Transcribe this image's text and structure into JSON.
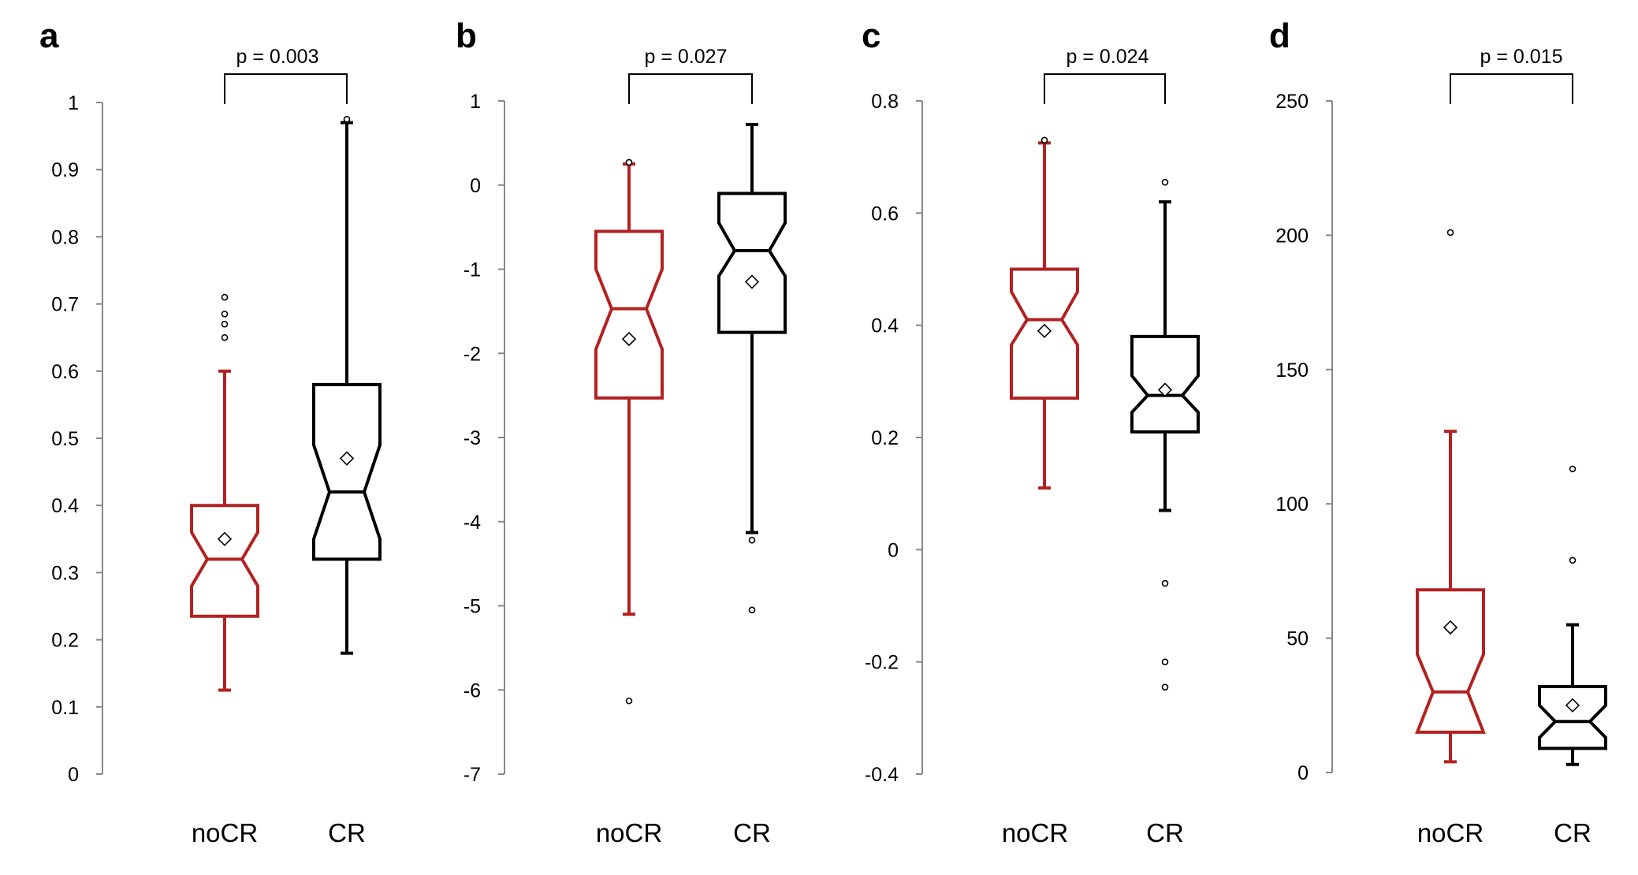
{
  "colors": {
    "noCR": "#b22222",
    "CR": "#000000",
    "axis": "#888888"
  },
  "chart_data": [
    {
      "type": "boxplot",
      "panel": "a",
      "p_value": "p = 0.003",
      "categories": [
        "noCR",
        "CR"
      ],
      "ylim": [
        0,
        1
      ],
      "yticks": [
        "0",
        "0.1",
        "0.2",
        "0.3",
        "0.4",
        "0.5",
        "0.6",
        "0.7",
        "0.8",
        "0.9",
        "1"
      ],
      "ytick_values": [
        0,
        0.1,
        0.2,
        0.3,
        0.4,
        0.5,
        0.6,
        0.7,
        0.8,
        0.9,
        1
      ],
      "boxes": [
        {
          "name": "noCR",
          "whisker_low": 0.125,
          "q1": 0.235,
          "median": 0.32,
          "q3": 0.4,
          "whisker_high": 0.6,
          "mean": 0.35,
          "notch_low": 0.28,
          "notch_high": 0.36,
          "outliers": [
            0.65,
            0.67,
            0.685,
            0.71
          ]
        },
        {
          "name": "CR",
          "whisker_low": 0.18,
          "q1": 0.32,
          "median": 0.42,
          "q3": 0.58,
          "whisker_high": 0.97,
          "mean": 0.47,
          "notch_low": 0.35,
          "notch_high": 0.49,
          "outliers": [
            0.975
          ]
        }
      ]
    },
    {
      "type": "boxplot",
      "panel": "b",
      "p_value": "p = 0.027",
      "categories": [
        "noCR",
        "CR"
      ],
      "ylim": [
        -7,
        1
      ],
      "yticks": [
        "-7",
        "-6",
        "-5",
        "-4",
        "-3",
        "-2",
        "-1",
        "0",
        "1"
      ],
      "ytick_values": [
        -7,
        -6,
        -5,
        -4,
        -3,
        -2,
        -1,
        0,
        1
      ],
      "boxes": [
        {
          "name": "noCR",
          "whisker_low": -5.1,
          "q1": -2.53,
          "median": -1.47,
          "q3": -0.55,
          "whisker_high": 0.25,
          "mean": -1.83,
          "notch_low": -1.95,
          "notch_high": -1.0,
          "outliers": [
            -6.13,
            0.27
          ]
        },
        {
          "name": "CR",
          "whisker_low": -4.13,
          "q1": -1.75,
          "median": -0.78,
          "q3": -0.1,
          "whisker_high": 0.72,
          "mean": -1.15,
          "notch_low": -1.08,
          "notch_high": -0.45,
          "outliers": [
            -4.22,
            -5.05
          ]
        }
      ]
    },
    {
      "type": "boxplot",
      "panel": "c",
      "p_value": "p = 0.024",
      "categories": [
        "noCR",
        "CR"
      ],
      "ylim": [
        -0.4,
        0.8
      ],
      "yticks": [
        "-0.4",
        "-0.2",
        "0",
        "0.2",
        "0.4",
        "0.6",
        "0.8"
      ],
      "ytick_values": [
        -0.4,
        -0.2,
        0,
        0.2,
        0.4,
        0.6,
        0.8
      ],
      "boxes": [
        {
          "name": "noCR",
          "whisker_low": 0.11,
          "q1": 0.27,
          "median": 0.41,
          "q3": 0.5,
          "whisker_high": 0.725,
          "mean": 0.39,
          "notch_low": 0.365,
          "notch_high": 0.46,
          "outliers": [
            0.73
          ]
        },
        {
          "name": "CR",
          "whisker_low": 0.07,
          "q1": 0.21,
          "median": 0.275,
          "q3": 0.38,
          "whisker_high": 0.62,
          "mean": 0.285,
          "notch_low": 0.245,
          "notch_high": 0.31,
          "outliers": [
            0.655,
            -0.06,
            -0.2,
            -0.245
          ]
        }
      ]
    },
    {
      "type": "boxplot",
      "panel": "d",
      "p_value": "p = 0.015",
      "categories": [
        "noCR",
        "CR"
      ],
      "ylim": [
        0,
        250
      ],
      "yticks": [
        "0",
        "50",
        "100",
        "150",
        "200",
        "250"
      ],
      "ytick_values": [
        0,
        50,
        100,
        150,
        200,
        250
      ],
      "boxes": [
        {
          "name": "noCR",
          "whisker_low": 4,
          "q1": 15,
          "median": 30,
          "q3": 68,
          "whisker_high": 127,
          "mean": 54,
          "notch_low": 15,
          "notch_high": 44,
          "outliers": [
            201
          ]
        },
        {
          "name": "CR",
          "whisker_low": 3,
          "q1": 9,
          "median": 19,
          "q3": 32,
          "whisker_high": 55,
          "mean": 25,
          "notch_low": 13,
          "notch_high": 25,
          "outliers": [
            113,
            79
          ]
        }
      ]
    }
  ]
}
